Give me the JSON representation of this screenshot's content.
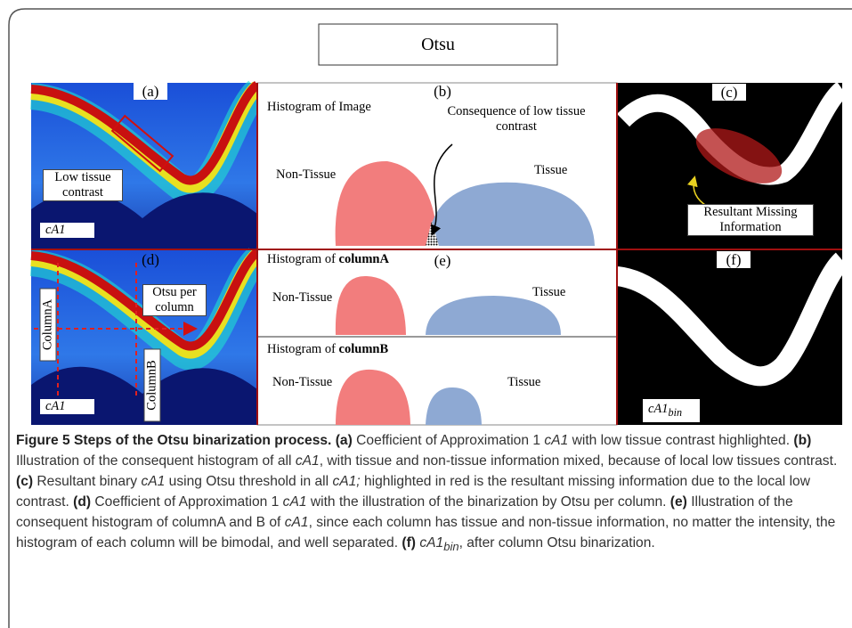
{
  "header": {
    "title": "Otsu"
  },
  "panels": {
    "a": {
      "label": "(a)",
      "callout": "Low tissue contrast",
      "image_label": "cA1"
    },
    "b": {
      "label": "(b)",
      "title": "Histogram of Image",
      "annotation": "Consequence of low tissue contrast",
      "left_mode": "Non-Tissue",
      "right_mode": "Tissue"
    },
    "c": {
      "label": "(c)",
      "annotation": "Resultant Missing Information"
    },
    "d": {
      "label": "(d)",
      "annotation": "Otsu per column",
      "column_a": "ColumnA",
      "column_b": "ColumnB",
      "image_label": "cA1"
    },
    "e": {
      "label": "(e)",
      "histograms": [
        {
          "title_prefix": "Histogram of",
          "title_column": "columnA",
          "left_mode": "Non-Tissue",
          "right_mode": "Tissue"
        },
        {
          "title_prefix": "Histogram of",
          "title_column": "columnB",
          "left_mode": "Non-Tissue",
          "right_mode": "Tissue"
        }
      ]
    },
    "f": {
      "label": "(f)",
      "image_label": "cA1",
      "image_label_subscript": "bin"
    }
  },
  "caption": {
    "runs": [
      "Figure 5 Steps of the Otsu binarization process.",
      "(a)",
      "Coefficient of Approximation 1",
      "cA1",
      "with low tissue contrast highlighted.",
      "(b)",
      "Illustration of the consequent histogram of all",
      "cA1",
      ", with tissue and non-tissue information mixed, because of local low tissues contrast.",
      "(c)",
      "Resultant binary",
      "cA1",
      "using Otsu threshold in all",
      "cA1;",
      "highlighted in red is the resultant missing information due to the local low contrast.",
      "(d)",
      "Coefficient of Approximation 1",
      "cA1",
      "with the illustration of the binarization by Otsu per column.",
      "(e)",
      "Illustration of the consequent histogram of columnA and B of",
      "cA1",
      ", since each column has tissue and non-tissue information, no matter the intensity, the histogram of each column will be bimodal, and well separated.",
      "(f)",
      "cA1",
      "bin",
      ", after column Otsu binarization."
    ]
  }
}
